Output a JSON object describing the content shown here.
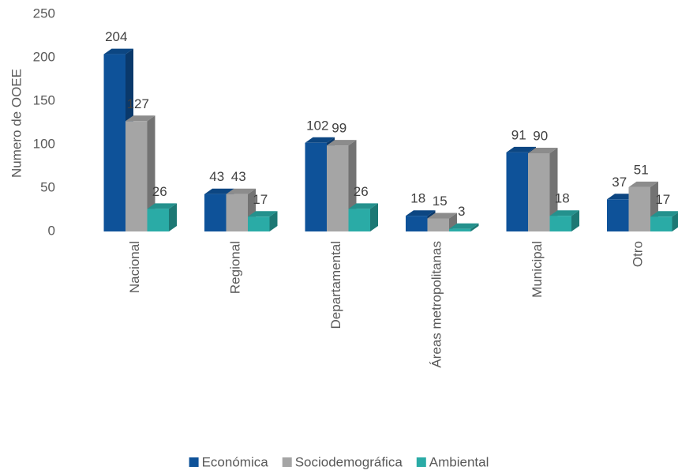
{
  "chart_data": {
    "type": "bar3d",
    "y_label": "Numero de OOEE",
    "categories": [
      "Nacional",
      "Regional",
      "Departamental",
      "Áreas metropolitanas",
      "Municipal",
      "Otro"
    ],
    "series": [
      {
        "name": "Económica",
        "color": "#0e5299",
        "values": [
          204,
          43,
          102,
          18,
          91,
          37
        ]
      },
      {
        "name": "Sociodemográfica",
        "color": "#a5a5a5",
        "values": [
          127,
          43,
          99,
          15,
          90,
          51
        ]
      },
      {
        "name": "Ambiental",
        "color": "#2aaba6",
        "values": [
          26,
          17,
          26,
          3,
          18,
          17
        ]
      }
    ],
    "ylim": [
      0,
      250
    ],
    "yticks": [
      0,
      50,
      100,
      150,
      200,
      250
    ],
    "grid": false,
    "legend": "bottom"
  }
}
